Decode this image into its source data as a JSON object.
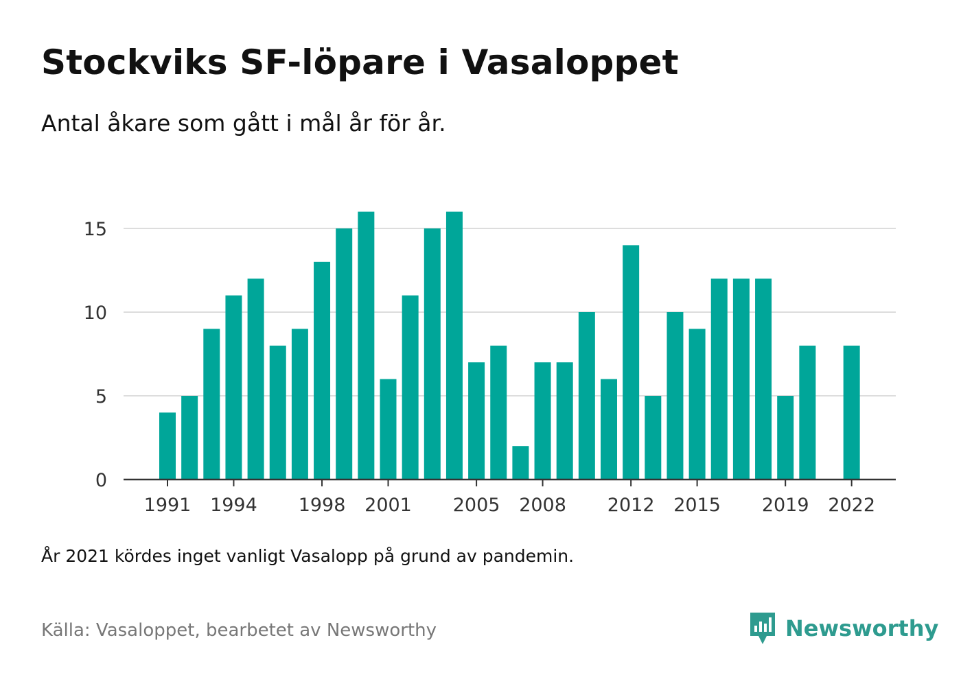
{
  "header": {
    "title": "Stockviks SF-löpare i Vasaloppet",
    "subtitle": "Antal åkare som gått i mål år för år."
  },
  "footer": {
    "note": "År 2021 kördes inget vanligt Vasalopp på grund av pandemin.",
    "source": "Källa: Vasaloppet, bearbetet av Newsworthy",
    "brand": "Newsworthy",
    "brand_icon": "newsworthy-bar-chart-logo-icon"
  },
  "colors": {
    "bar": "#00a699",
    "grid": "#dddddd",
    "axis": "#333333",
    "brand": "#2e9b8f"
  },
  "chart_data": {
    "type": "bar",
    "title": "Stockviks SF-löpare i Vasaloppet",
    "subtitle": "Antal åkare som gått i mål år för år.",
    "xlabel": "",
    "ylabel": "",
    "categories": [
      1991,
      1992,
      1993,
      1994,
      1995,
      1996,
      1997,
      1998,
      1999,
      2000,
      2001,
      2002,
      2003,
      2004,
      2005,
      2006,
      2007,
      2008,
      2009,
      2010,
      2011,
      2012,
      2013,
      2014,
      2015,
      2016,
      2017,
      2018,
      2019,
      2020,
      2021,
      2022
    ],
    "values": [
      4,
      5,
      9,
      11,
      12,
      8,
      9,
      13,
      15,
      16,
      6,
      11,
      15,
      16,
      7,
      8,
      2,
      7,
      7,
      10,
      6,
      14,
      5,
      10,
      9,
      12,
      12,
      12,
      5,
      8,
      null,
      8
    ],
    "ylim": [
      0,
      16.5
    ],
    "yticks": [
      "0",
      "5",
      "10",
      "15"
    ],
    "xticks": [
      "1991",
      "1994",
      "1998",
      "2001",
      "2005",
      "2008",
      "2012",
      "2015",
      "2019",
      "2022"
    ],
    "grid": true,
    "legend": "none"
  }
}
